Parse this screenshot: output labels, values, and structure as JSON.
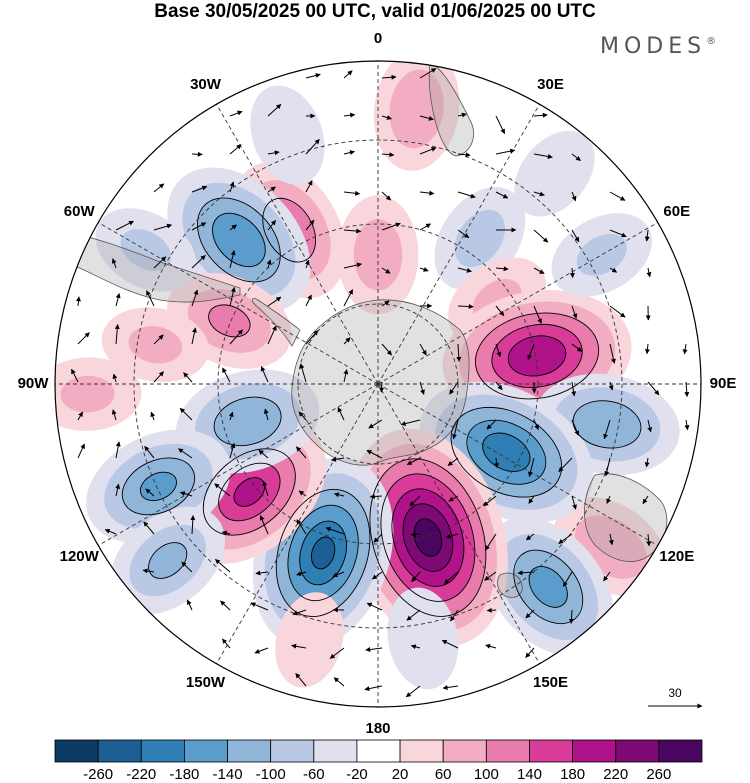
{
  "title": "Base 30/05/2025 00 UTC, valid 01/06/2025 00 UTC",
  "brand": {
    "name": "MODES",
    "mark": "®"
  },
  "longitude_labels": [
    {
      "lon": 0,
      "text": "0"
    },
    {
      "lon": 30,
      "text": "30E"
    },
    {
      "lon": 60,
      "text": "60E"
    },
    {
      "lon": 90,
      "text": "90E"
    },
    {
      "lon": 120,
      "text": "120E"
    },
    {
      "lon": 150,
      "text": "150E"
    },
    {
      "lon": 180,
      "text": "180"
    },
    {
      "lon": 210,
      "text": "150W"
    },
    {
      "lon": 240,
      "text": "120W"
    },
    {
      "lon": 270,
      "text": "90W"
    },
    {
      "lon": 300,
      "text": "60W"
    },
    {
      "lon": 330,
      "text": "30W"
    }
  ],
  "reference_vector": {
    "value": "30"
  },
  "projection": "south polar stereographic",
  "colorbar": {
    "ticks": [
      "-260",
      "-220",
      "-180",
      "-140",
      "-100",
      "-60",
      "-20",
      "20",
      "60",
      "100",
      "140",
      "180",
      "220",
      "260"
    ],
    "colors": [
      "#0d3b66",
      "#1d5f95",
      "#2f7fb4",
      "#5a9ccb",
      "#8fb5d9",
      "#b9c8e4",
      "#e0e0ef",
      "#ffffff",
      "#f9d6dc",
      "#f3adc2",
      "#ea7bad",
      "#d93b98",
      "#b0128a",
      "#7d0a74",
      "#4a0560"
    ]
  },
  "anomaly_centers": [
    {
      "lon": 8,
      "colat": 0.86,
      "value": 90
    },
    {
      "lon": 330,
      "colat": 0.55,
      "value": 130
    },
    {
      "lon": 316,
      "colat": 0.62,
      "value": -170
    },
    {
      "lon": 293,
      "colat": 0.5,
      "value": 100
    },
    {
      "lon": 0,
      "colat": 0.4,
      "value": 80
    },
    {
      "lon": 35,
      "colat": 0.55,
      "value": -70
    },
    {
      "lon": 55,
      "colat": 0.45,
      "value": 60
    },
    {
      "lon": 80,
      "colat": 0.5,
      "value": 210
    },
    {
      "lon": 100,
      "colat": 0.72,
      "value": -130
    },
    {
      "lon": 125,
      "colat": 0.88,
      "value": 90
    },
    {
      "lon": 140,
      "colat": 0.82,
      "value": -150
    },
    {
      "lon": 118,
      "colat": 0.45,
      "value": -200
    },
    {
      "lon": 162,
      "colat": 0.5,
      "value": 270
    },
    {
      "lon": 198,
      "colat": 0.55,
      "value": -220
    },
    {
      "lon": 230,
      "colat": 0.52,
      "value": 180
    },
    {
      "lon": 254,
      "colat": 0.42,
      "value": -130
    },
    {
      "lon": 245,
      "colat": 0.75,
      "value": -140
    },
    {
      "lon": 230,
      "colat": 0.85,
      "value": -100
    },
    {
      "lon": 280,
      "colat": 0.7,
      "value": 60
    },
    {
      "lon": 268,
      "colat": 0.9,
      "value": 60
    },
    {
      "lon": 300,
      "colat": 0.83,
      "value": -60
    },
    {
      "lon": 195,
      "colat": 0.82,
      "value": 40
    },
    {
      "lon": 170,
      "colat": 0.8,
      "value": -50
    },
    {
      "lon": 60,
      "colat": 0.8,
      "value": -60
    },
    {
      "lon": 40,
      "colat": 0.85,
      "value": -40
    },
    {
      "lon": 340,
      "colat": 0.82,
      "value": -50
    }
  ]
}
